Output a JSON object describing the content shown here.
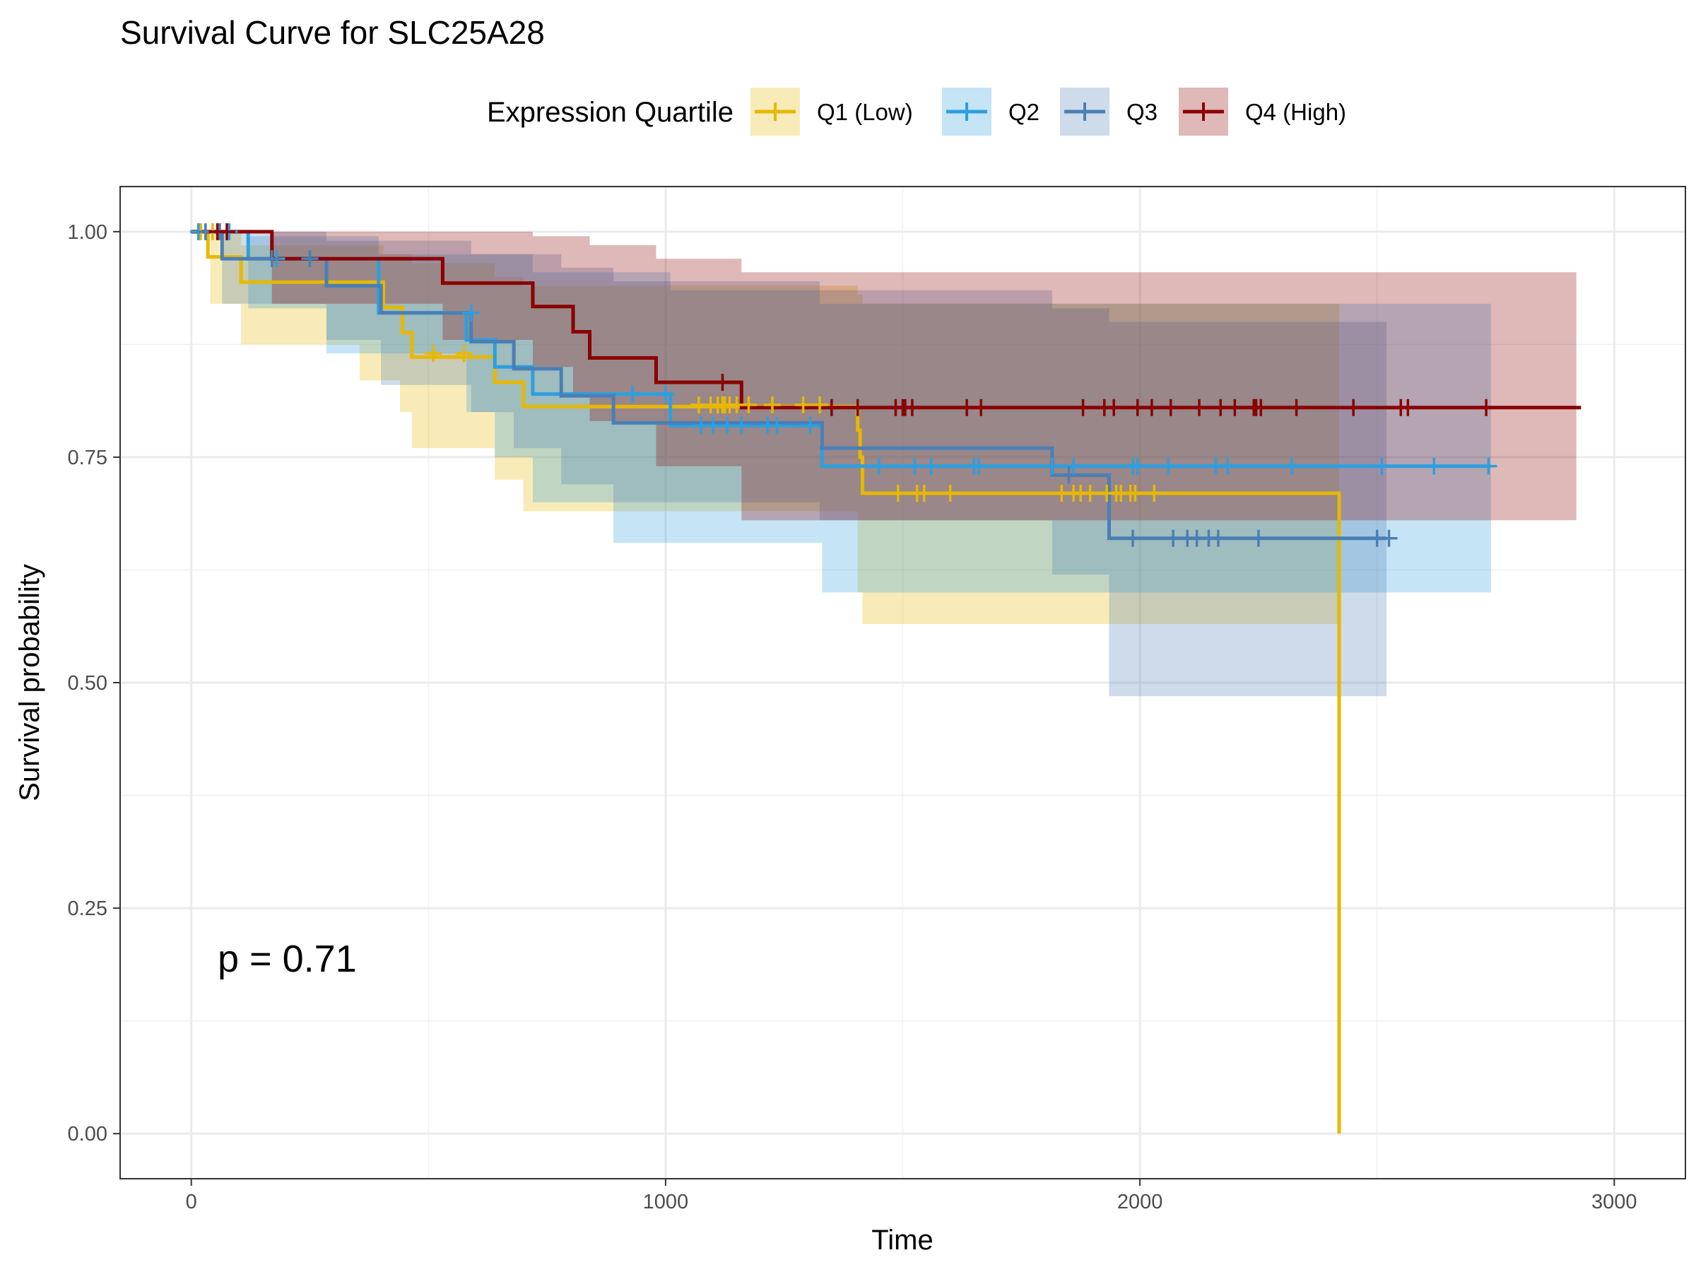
{
  "chart_data": {
    "type": "line",
    "title": "Survival Curve for SLC25A28",
    "xlabel": "Time",
    "ylabel": "Survival probability",
    "xlim": [
      -150,
      3150
    ],
    "ylim": [
      -0.05,
      1.05
    ],
    "x_ticks": [
      0,
      1000,
      2000,
      3000
    ],
    "x_tick_labels": [
      "0",
      "1000",
      "2000",
      "3000"
    ],
    "y_ticks": [
      0,
      0.25,
      0.5,
      0.75,
      1.0
    ],
    "y_tick_labels": [
      "0.00",
      "0.25",
      "0.50",
      "0.75",
      "1.00"
    ],
    "grid": true,
    "legend": {
      "title": "Expression Quartile",
      "position": "top"
    },
    "annotation": "p = 0.71",
    "series": [
      {
        "name": "Q1 (Low)",
        "color": "#E7B800",
        "steps": [
          [
            0,
            1.0
          ],
          [
            35,
            0.972
          ],
          [
            105,
            0.944
          ],
          [
            405,
            0.916
          ],
          [
            445,
            0.888
          ],
          [
            465,
            0.861
          ],
          [
            640,
            0.833
          ],
          [
            700,
            0.806
          ],
          [
            1405,
            0.78
          ],
          [
            1410,
            0.75
          ],
          [
            1415,
            0.71
          ],
          [
            2420,
            0.71
          ],
          [
            2420,
            0.0
          ]
        ],
        "lower": [
          [
            0,
            1.0
          ],
          [
            40,
            0.92
          ],
          [
            105,
            0.875
          ],
          [
            355,
            0.835
          ],
          [
            440,
            0.8
          ],
          [
            465,
            0.76
          ],
          [
            640,
            0.725
          ],
          [
            700,
            0.69
          ],
          [
            1405,
            0.6
          ],
          [
            1415,
            0.565
          ],
          [
            1975,
            0.565
          ],
          [
            2420,
            0.565
          ]
        ],
        "upper": [
          [
            0,
            1.0
          ],
          [
            105,
            0.985
          ],
          [
            405,
            0.975
          ],
          [
            465,
            0.965
          ],
          [
            640,
            0.95
          ],
          [
            700,
            0.94
          ],
          [
            1405,
            0.93
          ],
          [
            1415,
            0.92
          ],
          [
            2420,
            0.9
          ]
        ],
        "censors": [
          [
            20,
            1.0
          ],
          [
            45,
            1.0
          ],
          [
            510,
            0.865
          ],
          [
            575,
            0.865
          ],
          [
            1070,
            0.808
          ],
          [
            1095,
            0.808
          ],
          [
            1110,
            0.808
          ],
          [
            1120,
            0.808
          ],
          [
            1125,
            0.808
          ],
          [
            1135,
            0.808
          ],
          [
            1150,
            0.808
          ],
          [
            1175,
            0.808
          ],
          [
            1225,
            0.808
          ],
          [
            1290,
            0.808
          ],
          [
            1325,
            0.808
          ],
          [
            1490,
            0.71
          ],
          [
            1530,
            0.71
          ],
          [
            1545,
            0.71
          ],
          [
            1600,
            0.71
          ],
          [
            1835,
            0.71
          ],
          [
            1860,
            0.71
          ],
          [
            1875,
            0.71
          ],
          [
            1895,
            0.71
          ],
          [
            1930,
            0.71
          ],
          [
            1950,
            0.71
          ],
          [
            1960,
            0.71
          ],
          [
            1980,
            0.71
          ],
          [
            1990,
            0.71
          ],
          [
            2030,
            0.71
          ]
        ]
      },
      {
        "name": "Q2",
        "color": "#2E9FDF",
        "steps": [
          [
            0,
            1.0
          ],
          [
            120,
            0.97
          ],
          [
            395,
            0.91
          ],
          [
            580,
            0.88
          ],
          [
            640,
            0.85
          ],
          [
            720,
            0.82
          ],
          [
            1010,
            0.785
          ],
          [
            1325,
            0.785
          ],
          [
            1330,
            0.74
          ],
          [
            2740,
            0.74
          ]
        ],
        "lower": [
          [
            0,
            1.0
          ],
          [
            120,
            0.915
          ],
          [
            285,
            0.865
          ],
          [
            580,
            0.8
          ],
          [
            640,
            0.75
          ],
          [
            720,
            0.7
          ],
          [
            890,
            0.655
          ],
          [
            1325,
            0.655
          ],
          [
            1330,
            0.6
          ],
          [
            2740,
            0.6
          ]
        ],
        "upper": [
          [
            0,
            1.0
          ],
          [
            120,
            0.995
          ],
          [
            395,
            0.975
          ],
          [
            720,
            0.955
          ],
          [
            1010,
            0.935
          ],
          [
            1325,
            0.92
          ],
          [
            2740,
            0.915
          ]
        ],
        "censors": [
          [
            15,
            1.0
          ],
          [
            80,
            1.0
          ],
          [
            180,
            0.97
          ],
          [
            250,
            0.97
          ],
          [
            590,
            0.91
          ],
          [
            930,
            0.82
          ],
          [
            1000,
            0.82
          ],
          [
            1075,
            0.785
          ],
          [
            1100,
            0.785
          ],
          [
            1130,
            0.785
          ],
          [
            1160,
            0.785
          ],
          [
            1215,
            0.785
          ],
          [
            1235,
            0.785
          ],
          [
            1305,
            0.785
          ],
          [
            1450,
            0.74
          ],
          [
            1525,
            0.74
          ],
          [
            1560,
            0.74
          ],
          [
            1650,
            0.74
          ],
          [
            1660,
            0.74
          ],
          [
            1815,
            0.74
          ],
          [
            1860,
            0.74
          ],
          [
            1985,
            0.74
          ],
          [
            1995,
            0.74
          ],
          [
            2060,
            0.74
          ],
          [
            2160,
            0.74
          ],
          [
            2185,
            0.74
          ],
          [
            2320,
            0.74
          ],
          [
            2510,
            0.74
          ],
          [
            2620,
            0.74
          ],
          [
            2735,
            0.74
          ]
        ]
      },
      {
        "name": "Q3",
        "color": "#4A7FB5",
        "steps": [
          [
            0,
            1.0
          ],
          [
            65,
            0.97
          ],
          [
            285,
            0.94
          ],
          [
            400,
            0.91
          ],
          [
            590,
            0.878
          ],
          [
            680,
            0.848
          ],
          [
            780,
            0.818
          ],
          [
            890,
            0.788
          ],
          [
            1325,
            0.788
          ],
          [
            1330,
            0.76
          ],
          [
            1325,
            0.76
          ],
          [
            1815,
            0.76
          ],
          [
            1815,
            0.73
          ],
          [
            1935,
            0.73
          ],
          [
            1935,
            0.66
          ],
          [
            2520,
            0.66
          ]
        ],
        "lower": [
          [
            0,
            1.0
          ],
          [
            65,
            0.92
          ],
          [
            285,
            0.88
          ],
          [
            400,
            0.83
          ],
          [
            590,
            0.8
          ],
          [
            680,
            0.76
          ],
          [
            780,
            0.72
          ],
          [
            890,
            0.7
          ],
          [
            1325,
            0.68
          ],
          [
            1815,
            0.62
          ],
          [
            1935,
            0.485
          ],
          [
            2520,
            0.485
          ]
        ],
        "upper": [
          [
            0,
            1.0
          ],
          [
            285,
            0.99
          ],
          [
            590,
            0.975
          ],
          [
            780,
            0.96
          ],
          [
            890,
            0.945
          ],
          [
            1325,
            0.935
          ],
          [
            1815,
            0.915
          ],
          [
            1935,
            0.9
          ],
          [
            2520,
            0.9
          ]
        ],
        "censors": [
          [
            30,
            1.0
          ],
          [
            60,
            1.0
          ],
          [
            170,
            0.97
          ],
          [
            250,
            0.97
          ],
          [
            1850,
            0.73
          ],
          [
            1985,
            0.66
          ],
          [
            2070,
            0.66
          ],
          [
            2100,
            0.66
          ],
          [
            2120,
            0.66
          ],
          [
            2145,
            0.66
          ],
          [
            2165,
            0.66
          ],
          [
            2250,
            0.66
          ],
          [
            2500,
            0.66
          ],
          [
            2525,
            0.66
          ]
        ]
      },
      {
        "name": "Q4 (High)",
        "color": "#8B0000",
        "steps": [
          [
            0,
            1.0
          ],
          [
            170,
            0.97
          ],
          [
            530,
            0.943
          ],
          [
            720,
            0.917
          ],
          [
            805,
            0.889
          ],
          [
            840,
            0.86
          ],
          [
            980,
            0.833
          ],
          [
            1160,
            0.805
          ],
          [
            2930,
            0.805
          ]
        ],
        "lower": [
          [
            0,
            1.0
          ],
          [
            170,
            0.92
          ],
          [
            530,
            0.88
          ],
          [
            720,
            0.85
          ],
          [
            805,
            0.82
          ],
          [
            840,
            0.79
          ],
          [
            980,
            0.74
          ],
          [
            1160,
            0.68
          ],
          [
            2920,
            0.68
          ]
        ],
        "upper": [
          [
            0,
            1.0
          ],
          [
            720,
            0.995
          ],
          [
            840,
            0.985
          ],
          [
            980,
            0.97
          ],
          [
            1160,
            0.955
          ],
          [
            2920,
            0.945
          ]
        ],
        "censors": [
          [
            55,
            1.0
          ],
          [
            75,
            1.0
          ],
          [
            1120,
            0.833
          ],
          [
            1350,
            0.805
          ],
          [
            1405,
            0.805
          ],
          [
            1485,
            0.805
          ],
          [
            1500,
            0.805
          ],
          [
            1505,
            0.805
          ],
          [
            1520,
            0.805
          ],
          [
            1635,
            0.805
          ],
          [
            1665,
            0.805
          ],
          [
            1880,
            0.805
          ],
          [
            1925,
            0.805
          ],
          [
            1945,
            0.805
          ],
          [
            1995,
            0.805
          ],
          [
            2025,
            0.805
          ],
          [
            2065,
            0.805
          ],
          [
            2125,
            0.805
          ],
          [
            2170,
            0.805
          ],
          [
            2200,
            0.805
          ],
          [
            2240,
            0.805
          ],
          [
            2245,
            0.805
          ],
          [
            2255,
            0.805
          ],
          [
            2330,
            0.805
          ],
          [
            2450,
            0.805
          ],
          [
            2550,
            0.805
          ],
          [
            2565,
            0.805
          ],
          [
            2730,
            0.805
          ]
        ]
      }
    ]
  }
}
